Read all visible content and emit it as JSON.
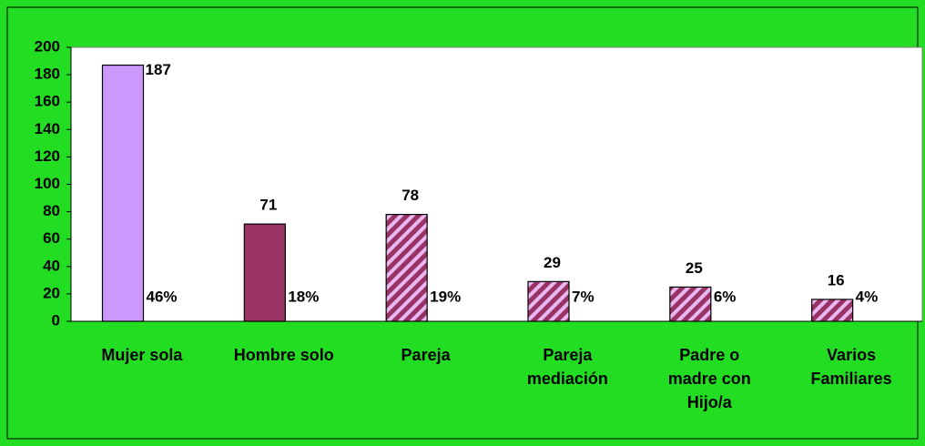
{
  "chart_data": {
    "type": "bar",
    "categories": [
      "Mujer sola",
      "Hombre solo",
      "Pareja",
      "Pareja mediación",
      "Padre o madre con Hijo/a",
      "Varios Familiares"
    ],
    "values": [
      187,
      71,
      78,
      29,
      25,
      16
    ],
    "shares": [
      46,
      18,
      19,
      7,
      6,
      4
    ],
    "share_labels": [
      "46%",
      "18%",
      "19%",
      "7%",
      "6%",
      "4%"
    ],
    "colors": [
      "#cc99ff",
      "#993366",
      "hatch",
      "hatch",
      "hatch",
      "hatch"
    ],
    "ylim": [
      0,
      200
    ],
    "yticks": [
      0,
      20,
      40,
      60,
      80,
      100,
      120,
      140,
      160,
      180,
      200
    ],
    "grid": false
  }
}
